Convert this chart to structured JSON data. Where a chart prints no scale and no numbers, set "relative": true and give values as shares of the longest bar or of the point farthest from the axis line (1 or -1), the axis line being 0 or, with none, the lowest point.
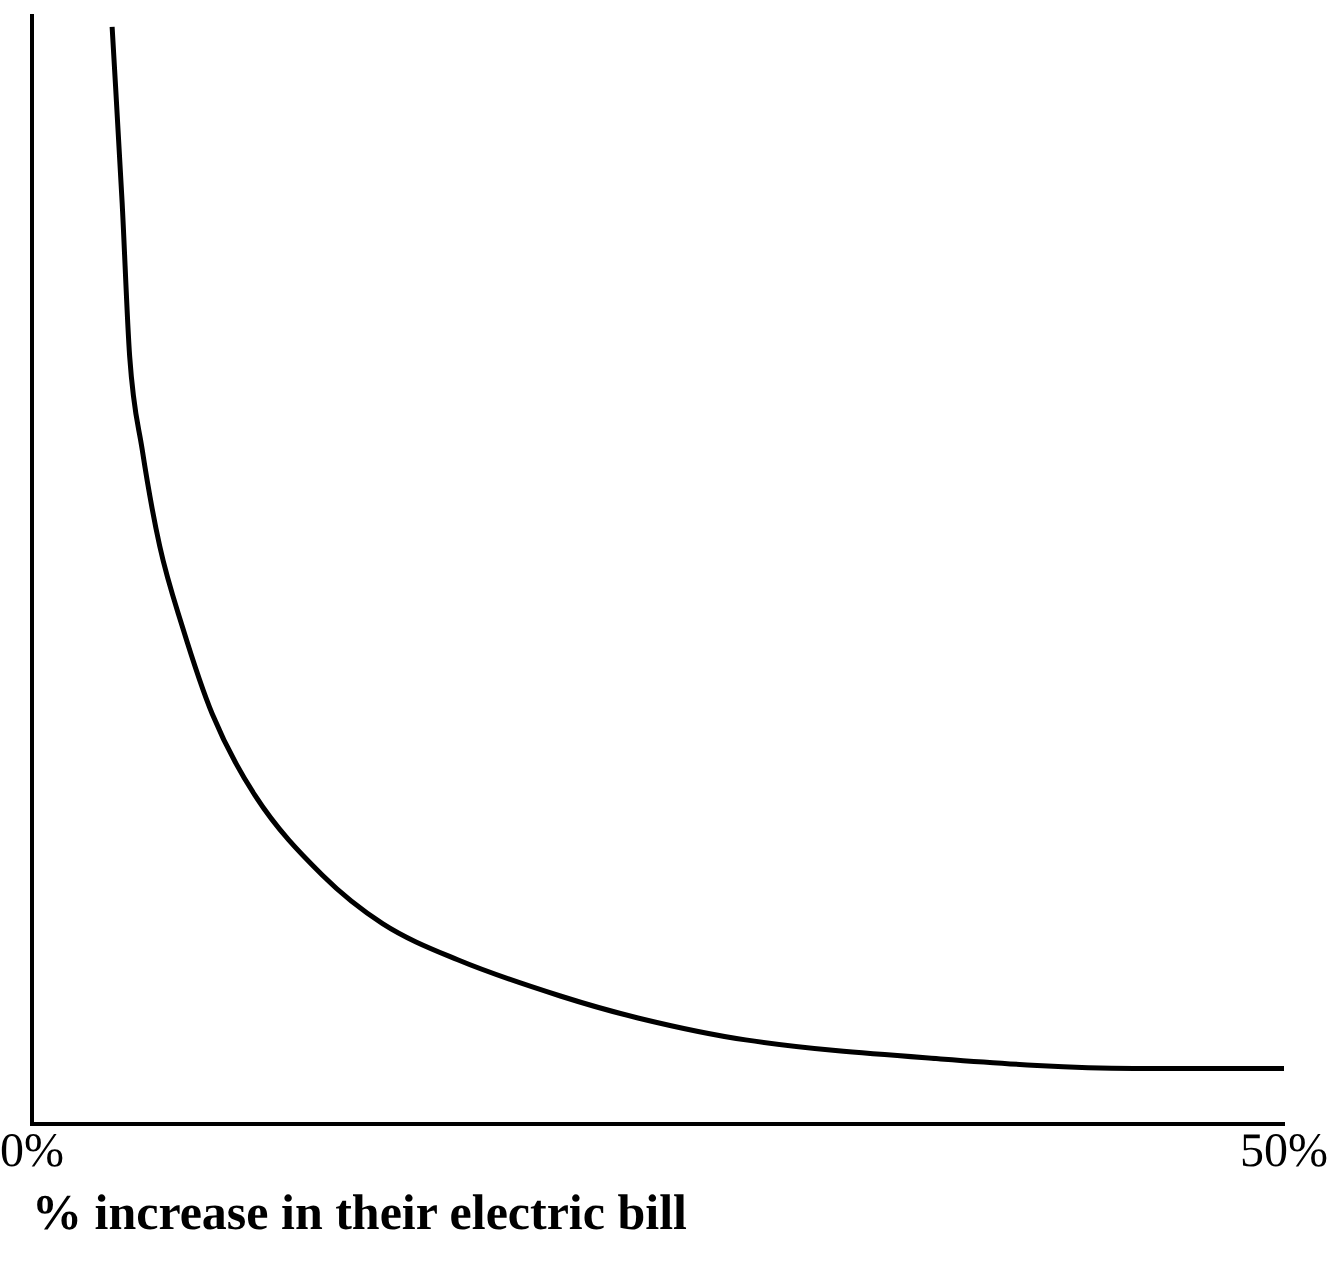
{
  "chart_data": {
    "type": "line",
    "xlabel": "% increase in their electric bill",
    "relative": true,
    "xlim": [
      0,
      50
    ],
    "xticks": [
      {
        "value": 0,
        "label": "0%"
      },
      {
        "value": 50,
        "label": "50%"
      }
    ],
    "grid": false,
    "legend": false,
    "marker": "none",
    "line_style": "solid",
    "series": [
      {
        "color": "#000000",
        "x": [
          3.2,
          3.6,
          3.9,
          4.4,
          5.1,
          6.0,
          7.2,
          8.9,
          11.6,
          14.0,
          17.0,
          21.1,
          24.2,
          28.5,
          36.1,
          44.0,
          50
        ],
        "values": [
          1,
          0.84,
          0.7,
          0.615,
          0.527,
          0.454,
          0.374,
          0.3,
          0.227,
          0.183,
          0.15,
          0.117,
          0.097,
          0.077,
          0.06,
          0.051,
          0.051
        ]
      }
    ]
  }
}
